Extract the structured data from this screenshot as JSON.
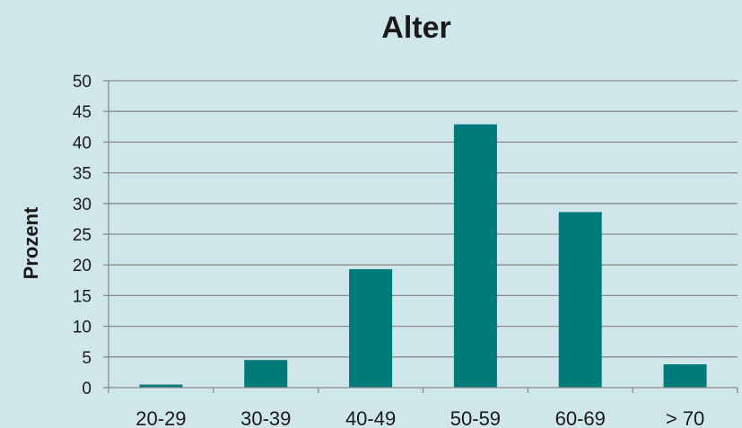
{
  "chart_data": {
    "type": "bar",
    "title": "Alter",
    "xlabel": "",
    "ylabel": "Prozent",
    "categories": [
      "20-29",
      "30-39",
      "40-49",
      "50-59",
      "60-69",
      "> 70"
    ],
    "values": [
      0.5,
      4.5,
      19.3,
      42.9,
      28.6,
      3.8
    ],
    "ylim": [
      0,
      50
    ],
    "yticks": [
      "0",
      "5",
      "10",
      "15",
      "20",
      "25",
      "30",
      "35",
      "40",
      "45",
      "50"
    ],
    "grid": "horizontal",
    "bar_color": "#007b7b",
    "grid_color": "#8a8a8a",
    "background_color": "#cfe6ea"
  }
}
